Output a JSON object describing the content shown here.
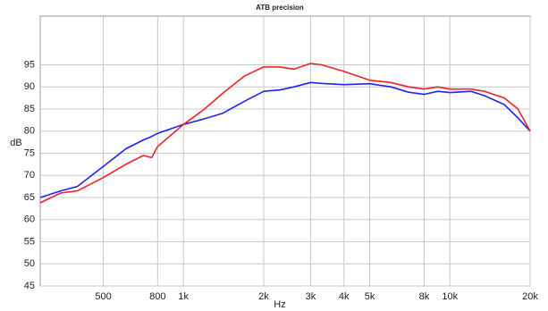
{
  "chart_data": {
    "type": "line",
    "title": "ATB precision",
    "xlabel": "Hz",
    "ylabel": "dB",
    "log_x": true,
    "grid": true,
    "x": [
      290,
      346,
      400,
      500,
      608,
      707,
      760,
      800,
      1000,
      1200,
      1400,
      1700,
      2000,
      2300,
      2600,
      3000,
      3300,
      4000,
      5000,
      6000,
      7000,
      8000,
      9000,
      10000,
      12000,
      13500,
      16000,
      18000,
      20000
    ],
    "series": [
      {
        "name": "blue",
        "color": "#2222ee",
        "values": [
          65,
          66.5,
          67.5,
          72,
          76,
          78,
          78.8,
          79.5,
          81.5,
          82.8,
          84,
          86.8,
          89,
          89.3,
          90,
          91,
          90.8,
          90.5,
          90.7,
          90,
          88.8,
          88.3,
          89,
          88.7,
          89,
          88,
          86,
          83,
          80
        ]
      },
      {
        "name": "red",
        "color": "#ee2222",
        "values": [
          63.8,
          66,
          66.5,
          69.5,
          72.5,
          74.5,
          74,
          76.5,
          81.5,
          85,
          88.5,
          92.5,
          94.5,
          94.5,
          94,
          95.3,
          95,
          93.5,
          91.5,
          91,
          90,
          89.5,
          90,
          89.5,
          89.5,
          89,
          87.5,
          85,
          80
        ]
      }
    ],
    "xlim": [
      290,
      20000
    ],
    "xticks": [
      500,
      800,
      {
        "value": 1000,
        "label": "1k"
      },
      {
        "value": 2000,
        "label": "2k"
      },
      {
        "value": 3000,
        "label": "3k"
      },
      {
        "value": 4000,
        "label": "4k"
      },
      {
        "value": 5000,
        "label": "5k"
      },
      {
        "value": 8000,
        "label": "8k"
      },
      {
        "value": 10000,
        "label": "10k"
      },
      {
        "value": 20000,
        "label": "20k"
      }
    ],
    "ylim": [
      45,
      106
    ],
    "yticks": [
      45,
      50,
      55,
      60,
      65,
      70,
      75,
      80,
      85,
      90,
      95
    ]
  }
}
